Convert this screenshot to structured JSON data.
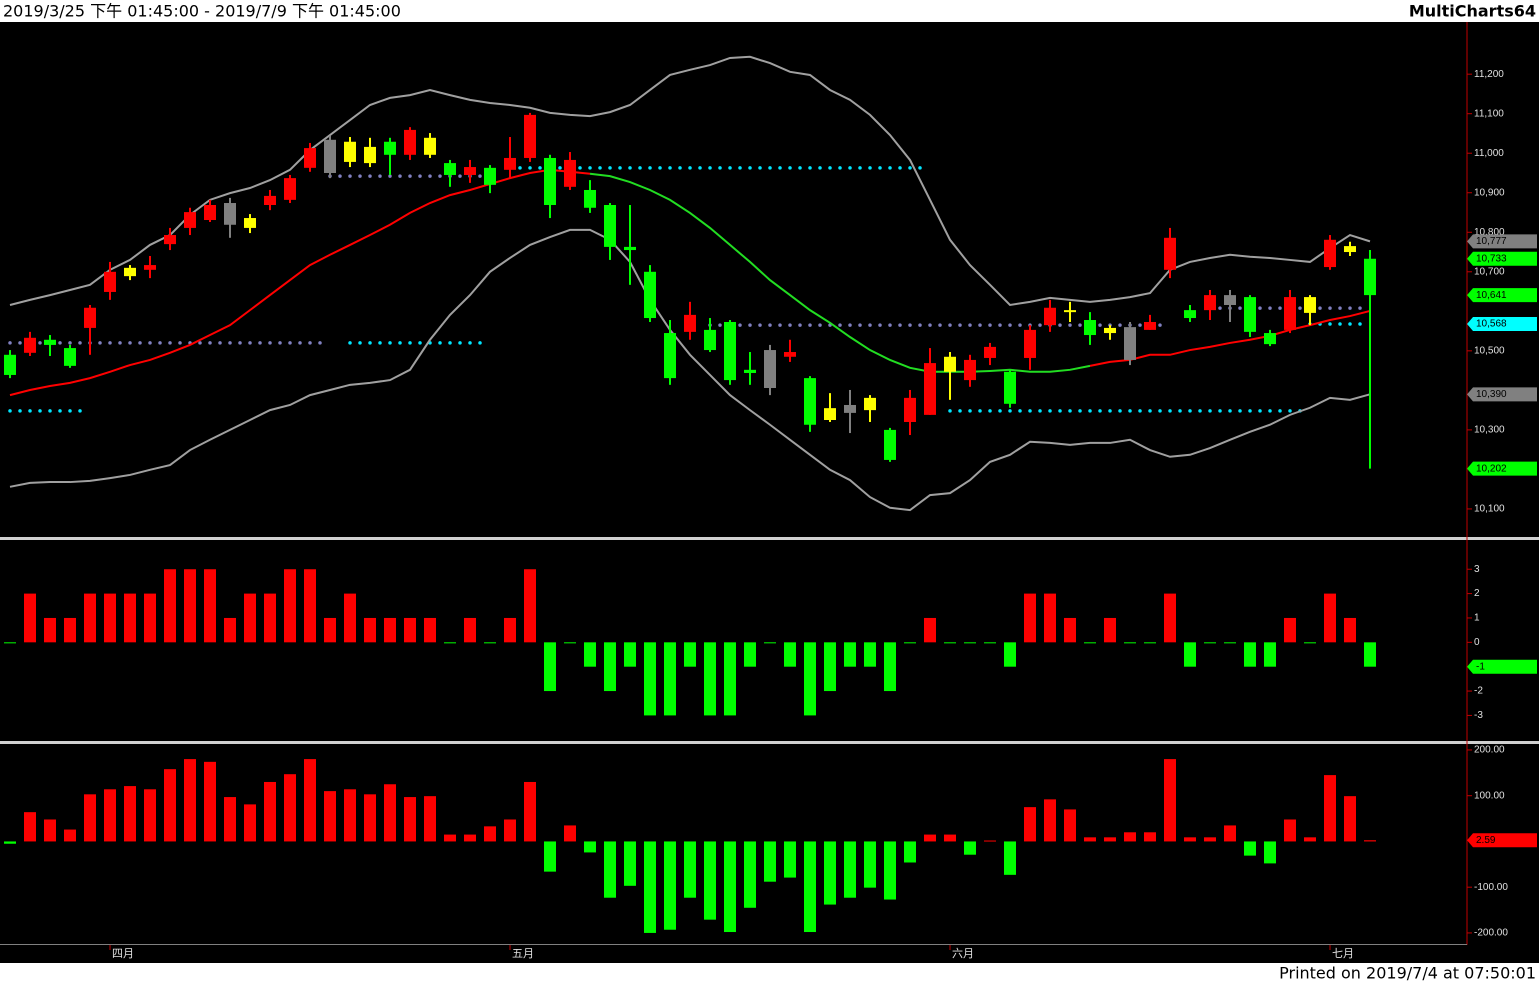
{
  "header": {
    "range": "2019/3/25 下午 01:45:00 - 2019/7/9 下午 01:45:00",
    "app": "MultiCharts64"
  },
  "footer": {
    "printed": "Printed on 2019/7/4 at 07:50:01"
  },
  "chart_data": [
    {
      "type": "candlestick",
      "categories": [
        null,
        null,
        null,
        null,
        null,
        null,
        "四月",
        null,
        null,
        null,
        null,
        null,
        null,
        null,
        null,
        null,
        null,
        null,
        null,
        null,
        null,
        null,
        null,
        null,
        null,
        null,
        "五月",
        null,
        null,
        null,
        null,
        null,
        null,
        null,
        null,
        null,
        null,
        null,
        null,
        null,
        null,
        null,
        null,
        null,
        null,
        null,
        null,
        null,
        "六月",
        null,
        null,
        null,
        null,
        null,
        null,
        null,
        null,
        null,
        null,
        null,
        null,
        null,
        null,
        null,
        null,
        null,
        null,
        "七月",
        null
      ],
      "open": [
        10490,
        10495,
        10528,
        10507,
        10558,
        10649,
        10689,
        10705,
        10770,
        10811,
        10831,
        10874,
        10811,
        10869,
        10882,
        10963,
        11034,
        10978,
        10975,
        11029,
        10996,
        10996,
        10975,
        10945,
        10963,
        10958,
        10988,
        10988,
        10915,
        10907,
        10869,
        10763,
        10700,
        10545,
        10548,
        10553,
        10573,
        10452,
        10502,
        10485,
        10431,
        10325,
        10363,
        10350,
        10300,
        10320,
        10338,
        10447,
        10426,
        10482,
        10447,
        10482,
        10565,
        10598,
        10578,
        10545,
        10560,
        10553,
        10705,
        10603,
        10603,
        10641,
        10636,
        10545,
        10553,
        10596,
        10712,
        10750,
        10733
      ],
      "high": [
        10502,
        10548,
        10540,
        10515,
        10616,
        10725,
        10717,
        10740,
        10811,
        10862,
        10882,
        10887,
        10846,
        10907,
        10945,
        11026,
        11044,
        11041,
        11039,
        11039,
        11066,
        11051,
        10983,
        10983,
        10970,
        11041,
        11102,
        10996,
        11003,
        10932,
        10874,
        10869,
        10717,
        10578,
        10624,
        10583,
        10578,
        10497,
        10515,
        10528,
        10436,
        10393,
        10401,
        10388,
        10305,
        10401,
        10507,
        10497,
        10490,
        10520,
        10452,
        10565,
        10629,
        10624,
        10598,
        10565,
        10573,
        10591,
        10811,
        10616,
        10654,
        10654,
        10641,
        10553,
        10654,
        10641,
        10793,
        10776,
        10755
      ],
      "low": [
        10431,
        10487,
        10487,
        10457,
        10490,
        10629,
        10679,
        10684,
        10755,
        10793,
        10826,
        10786,
        10798,
        10856,
        10874,
        10953,
        10937,
        10965,
        10965,
        10945,
        10983,
        10988,
        10915,
        10925,
        10899,
        10937,
        10978,
        10836,
        10907,
        10849,
        10730,
        10667,
        10573,
        10414,
        10528,
        10497,
        10414,
        10414,
        10388,
        10472,
        10295,
        10320,
        10292,
        10320,
        10219,
        10287,
        10338,
        10376,
        10409,
        10464,
        10356,
        10452,
        10548,
        10573,
        10515,
        10528,
        10464,
        10553,
        10684,
        10573,
        10578,
        10573,
        10535,
        10512,
        10545,
        10565,
        10705,
        10740,
        10202
      ],
      "close": [
        10439,
        10533,
        10515,
        10462,
        10609,
        10700,
        10710,
        10717,
        10793,
        10851,
        10869,
        10819,
        10836,
        10892,
        10937,
        11013,
        10950,
        11029,
        11016,
        10996,
        11059,
        11039,
        10945,
        10965,
        10920,
        10988,
        11097,
        10869,
        10983,
        10862,
        10763,
        10755,
        10583,
        10431,
        10591,
        10502,
        10426,
        10444,
        10406,
        10497,
        10313,
        10355,
        10343,
        10381,
        10224,
        10381,
        10469,
        10485,
        10477,
        10510,
        10366,
        10553,
        10609,
        10603,
        10540,
        10558,
        10477,
        10573,
        10786,
        10583,
        10641,
        10616,
        10548,
        10517,
        10636,
        10636,
        10781,
        10765,
        10641
      ],
      "colors": [
        "#00ff00",
        "#ff0000",
        "#00ff00",
        "#00ff00",
        "#ff0000",
        "#ff0000",
        "#ffff00",
        "#ff0000",
        "#ff0000",
        "#ff0000",
        "#ff0000",
        "#808080",
        "#ffff00",
        "#ff0000",
        "#ff0000",
        "#ff0000",
        "#808080",
        "#ffff00",
        "#ffff00",
        "#00ff00",
        "#ff0000",
        "#ffff00",
        "#00ff00",
        "#ff0000",
        "#00ff00",
        "#ff0000",
        "#ff0000",
        "#00ff00",
        "#ff0000",
        "#00ff00",
        "#00ff00",
        "#00ff00",
        "#00ff00",
        "#00ff00",
        "#ff0000",
        "#00ff00",
        "#00ff00",
        "#00ff00",
        "#808080",
        "#ff0000",
        "#00ff00",
        "#ffff00",
        "#808080",
        "#ffff00",
        "#00ff00",
        "#ff0000",
        "#ff0000",
        "#ffff00",
        "#ff0000",
        "#ff0000",
        "#00ff00",
        "#ff0000",
        "#ff0000",
        "#ffff00",
        "#00ff00",
        "#ffff00",
        "#808080",
        "#ff0000",
        "#ff0000",
        "#00ff00",
        "#ff0000",
        "#808080",
        "#00ff00",
        "#00ff00",
        "#ff0000",
        "#ffff00",
        "#ff0000",
        "#ffff00",
        "#00ff00"
      ],
      "series": [
        {
          "color": "#a0a0a0",
          "values": [
            10616,
            10629,
            10641,
            10654,
            10667,
            10705,
            10730,
            10768,
            10793,
            10844,
            10882,
            10899,
            10912,
            10932,
            10958,
            11008,
            11046,
            11084,
            11122,
            11140,
            11147,
            11160,
            11147,
            11135,
            11127,
            11122,
            11115,
            11102,
            11097,
            11094,
            11104,
            11122,
            11160,
            11198,
            11211,
            11223,
            11241,
            11244,
            11228,
            11206,
            11198,
            11160,
            11135,
            11097,
            11046,
            10983,
            10882,
            10781,
            10717,
            10667,
            10616,
            10624,
            10634,
            10629,
            10624,
            10629,
            10636,
            10646,
            10705,
            10725,
            10735,
            10743,
            10738,
            10735,
            10730,
            10725,
            10760,
            10793,
            10777
          ]
        },
        {
          "color": "#a0a0a0",
          "values": [
            10156,
            10166,
            10168,
            10168,
            10171,
            10178,
            10186,
            10199,
            10211,
            10249,
            10275,
            10300,
            10325,
            10350,
            10363,
            10388,
            10401,
            10414,
            10419,
            10426,
            10452,
            10528,
            10591,
            10641,
            10700,
            10735,
            10768,
            10788,
            10806,
            10806,
            10781,
            10725,
            10629,
            10553,
            10490,
            10439,
            10388,
            10350,
            10313,
            10275,
            10237,
            10199,
            10173,
            10130,
            10103,
            10097,
            10135,
            10140,
            10173,
            10219,
            10237,
            10270,
            10267,
            10262,
            10267,
            10267,
            10275,
            10249,
            10232,
            10237,
            10254,
            10275,
            10295,
            10313,
            10338,
            10356,
            10381,
            10376,
            10390
          ]
        },
        {
          "color": "#ff0000",
          "values": [
            10388,
            10401,
            10411,
            10419,
            10431,
            10447,
            10464,
            10477,
            10495,
            10515,
            10540,
            10565,
            10603,
            10641,
            10679,
            10717,
            10743,
            10768,
            10793,
            10819,
            10849,
            10874,
            10894,
            10907,
            10922,
            10937,
            10950,
            10958,
            10953,
            10948,
            10942,
            10927,
            10907,
            10882,
            10849,
            10811,
            10768,
            10725,
            10679,
            10641,
            10603,
            10571,
            10535,
            10502,
            10477,
            10457,
            10447,
            10447,
            10447,
            10449,
            10452,
            10447,
            10447,
            10452,
            10462,
            10472,
            10477,
            10490,
            10490,
            10502,
            10510,
            10520,
            10528,
            10538,
            10553,
            10565,
            10578,
            10588,
            10601
          ],
          "colors": [
            "#ff0000",
            "#ff0000",
            "#ff0000",
            "#ff0000",
            "#ff0000",
            "#ff0000",
            "#ff0000",
            "#ff0000",
            "#ff0000",
            "#ff0000",
            "#ff0000",
            "#ff0000",
            "#ff0000",
            "#ff0000",
            "#ff0000",
            "#ff0000",
            "#ff0000",
            "#ff0000",
            "#ff0000",
            "#ff0000",
            "#ff0000",
            "#ff0000",
            "#ff0000",
            "#ff0000",
            "#ff0000",
            "#ff0000",
            "#ff0000",
            "#ff0000",
            "#ff0000",
            "#ff0000",
            "#22dd22",
            "#22dd22",
            "#22dd22",
            "#22dd22",
            "#22dd22",
            "#22dd22",
            "#22dd22",
            "#22dd22",
            "#22dd22",
            "#22dd22",
            "#22dd22",
            "#22dd22",
            "#22dd22",
            "#22dd22",
            "#22dd22",
            "#22dd22",
            "#22dd22",
            "#22dd22",
            "#22dd22",
            "#22dd22",
            "#22dd22",
            "#22dd22",
            "#22dd22",
            "#22dd22",
            "#22dd22",
            "#ff0000",
            "#ff0000",
            "#ff0000",
            "#ff0000",
            "#ff0000",
            "#ff0000",
            "#ff0000",
            "#ff0000",
            "#ff0000",
            "#ff0000",
            "#ff0000",
            "#ff0000",
            "#ff0000",
            "#ff0000"
          ]
        }
      ],
      "levels": [
        {
          "value": 10348,
          "from": 0,
          "to": 4,
          "color": "#00e5ff"
        },
        {
          "value": 10520,
          "from": 0,
          "to": 16,
          "color": "#8080c0"
        },
        {
          "value": 10520,
          "from": 17,
          "to": 24,
          "color": "#00e5ff"
        },
        {
          "value": 10942,
          "from": 16,
          "to": 24,
          "color": "#8080c0"
        },
        {
          "value": 10963,
          "from": 25,
          "to": 46,
          "color": "#00e5ff"
        },
        {
          "value": 10565,
          "from": 35,
          "to": 58,
          "color": "#8080c0"
        },
        {
          "value": 10348,
          "from": 47,
          "to": 65,
          "color": "#00e5ff"
        },
        {
          "value": 10608,
          "from": 60,
          "to": 68,
          "color": "#8080c0"
        },
        {
          "value": 10568,
          "from": 65,
          "to": 68,
          "color": "#00e5ff"
        }
      ],
      "markers": [
        {
          "value": 10777,
          "label": "10,777",
          "color": "#808080"
        },
        {
          "value": 10733,
          "label": "10,733",
          "color": "#00ff00"
        },
        {
          "value": 10641,
          "label": "10,641",
          "color": "#00ff00"
        },
        {
          "value": 10568,
          "label": "10,568",
          "color": "#00ffff"
        },
        {
          "value": 10390,
          "label": "10,390",
          "color": "#808080"
        },
        {
          "value": 10202,
          "label": "10,202",
          "color": "#00ff00"
        }
      ],
      "ylim": [
        10029,
        11332
      ],
      "yticks": [
        {
          "value": 10100,
          "label": "10,100"
        },
        {
          "value": 10300,
          "label": "10,300"
        },
        {
          "value": 10500,
          "label": "10,500"
        },
        {
          "value": 10700,
          "label": "10,700"
        },
        {
          "value": 10800,
          "label": "10,800"
        },
        {
          "value": 10900,
          "label": "10,900"
        },
        {
          "value": 11000,
          "label": "11,000"
        },
        {
          "value": 11100,
          "label": "11,100"
        },
        {
          "value": 11200,
          "label": "11,200"
        }
      ]
    },
    {
      "type": "bar",
      "values": [
        0,
        2,
        1,
        1,
        2,
        2,
        2,
        2,
        3,
        3,
        3,
        1,
        2,
        2,
        3,
        3,
        1,
        2,
        1,
        1,
        1,
        1,
        0,
        1,
        0,
        1,
        3,
        -2,
        0,
        -1,
        -2,
        -1,
        -3,
        -3,
        -1,
        -3,
        -3,
        -1,
        0,
        -1,
        -3,
        -2,
        -1,
        -1,
        -2,
        0,
        1,
        0,
        0,
        0,
        -1,
        2,
        2,
        1,
        0,
        1,
        0,
        0,
        2,
        -1,
        0,
        0,
        -1,
        -1,
        1,
        0,
        2,
        1,
        -1
      ],
      "up_color": "#ff0000",
      "down_color": "#00ff00",
      "markers": [
        {
          "value": -1,
          "label": "-1",
          "color": "#00ff00"
        }
      ],
      "ylim": [
        -4.05,
        4.2
      ],
      "yticks": [
        3,
        2,
        1,
        0,
        -2,
        -3
      ]
    },
    {
      "type": "bar",
      "values": [
        -5,
        64,
        48,
        26,
        103,
        114,
        121,
        114,
        158,
        180,
        174,
        97,
        81,
        130,
        147,
        180,
        110,
        114,
        103,
        125,
        97,
        99,
        15,
        15,
        33,
        48,
        130,
        -66,
        35,
        -24,
        -123,
        -97,
        -200,
        -193,
        -123,
        -171,
        -198,
        -145,
        -88,
        -79,
        -198,
        -138,
        -123,
        -101,
        -127,
        -46,
        15,
        15,
        -29,
        2,
        -73,
        75,
        92,
        70,
        9,
        9,
        20,
        20,
        180,
        9,
        9,
        35,
        -31,
        -48,
        48,
        9,
        145,
        99,
        2.59
      ],
      "up_color": "#ff0000",
      "down_color": "#00ff00",
      "markers": [
        {
          "value": 2.59,
          "label": "2.59",
          "color": "#ff0000"
        }
      ],
      "ylim": [
        -222,
        213
      ],
      "yticks": [
        {
          "value": 200,
          "label": "200.00"
        },
        {
          "value": 100,
          "label": "100.00"
        },
        {
          "value": -100,
          "label": "-100.00"
        },
        {
          "value": -200,
          "label": "-200.00"
        }
      ]
    }
  ]
}
